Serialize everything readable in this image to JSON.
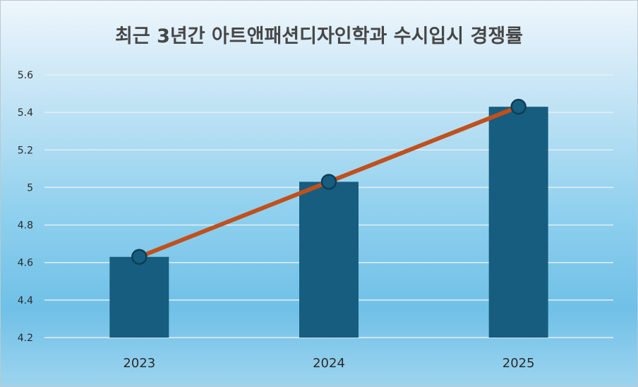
{
  "chart_data": {
    "type": "bar",
    "title": "최근 3년간 아트앤패션디자인학과 수시입시 경쟁률",
    "categories": [
      "2023",
      "2024",
      "2025"
    ],
    "values": [
      4.63,
      5.03,
      5.43
    ],
    "line_overlay": true,
    "xlabel": "",
    "ylabel": "",
    "ylim": [
      4.2,
      5.6
    ],
    "yticks": [
      "4.2",
      "4.4",
      "4.6",
      "4.8",
      "5",
      "5.2",
      "5.4",
      "5.6"
    ],
    "grid": true,
    "legend": "none",
    "colors": {
      "bar": "#175d7f",
      "line": "#c0501d",
      "marker_fill": "#175d7f",
      "marker_stroke": "#0d3e56",
      "grid": "#e6eef3"
    }
  }
}
